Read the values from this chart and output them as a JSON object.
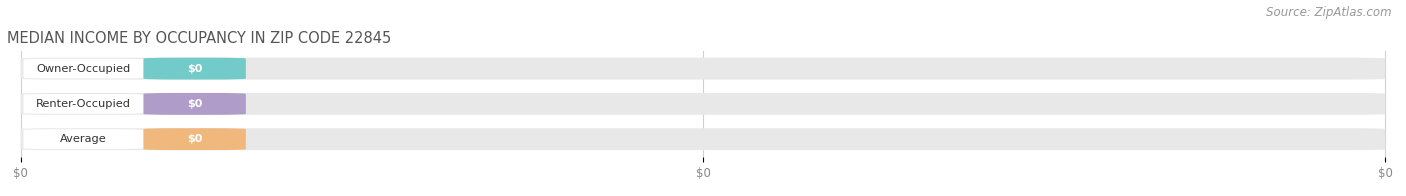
{
  "title": "MEDIAN INCOME BY OCCUPANCY IN ZIP CODE 22845",
  "source_text": "Source: ZipAtlas.com",
  "categories": [
    "Owner-Occupied",
    "Renter-Occupied",
    "Average"
  ],
  "values": [
    0,
    0,
    0
  ],
  "bar_colors": [
    "#72cac9",
    "#b09cc8",
    "#f0b87c"
  ],
  "bar_bg_color": "#e8e8e8",
  "value_labels": [
    "$0",
    "$0",
    "$0"
  ],
  "x_tick_labels": [
    "$0",
    "$0",
    "$0"
  ],
  "x_tick_positions": [
    0.0,
    0.5,
    1.0
  ],
  "xlim": [
    -0.01,
    1.01
  ],
  "title_fontsize": 10.5,
  "source_fontsize": 8.5,
  "bar_height": 0.62,
  "background_color": "#ffffff",
  "category_label_color": "#333333",
  "title_color": "#555555",
  "grid_color": "#d0d0d0",
  "tick_color": "#888888"
}
